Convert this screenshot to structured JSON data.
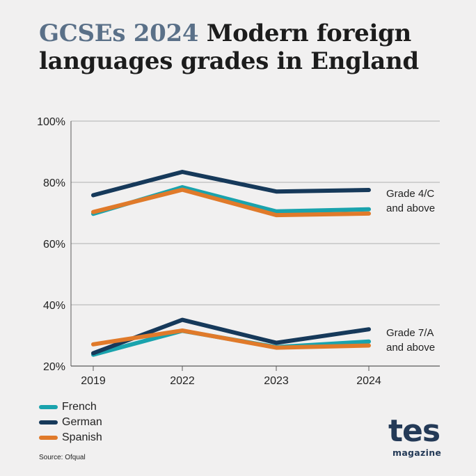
{
  "title": {
    "accent": "GCSEs 2024",
    "rest": "Modern foreign languages grades in England"
  },
  "colors": {
    "background": "#f1f0f0",
    "French": "#1aa3ad",
    "German": "#16395a",
    "Spanish": "#e07a2a",
    "grid": "#9a9a9a",
    "axis": "#5a5a5a"
  },
  "chart_data": {
    "type": "line",
    "categories": [
      "2019",
      "2022",
      "2023",
      "2024"
    ],
    "ylim": [
      20,
      100
    ],
    "yticks": [
      "20%",
      "40%",
      "60%",
      "80%",
      "100%"
    ],
    "ytick_values": [
      20,
      40,
      60,
      80,
      100
    ],
    "grid": true,
    "series": [
      {
        "name": "French",
        "group": "Grade 4/C and above",
        "values": [
          69.7,
          78.4,
          70.5,
          71.2
        ]
      },
      {
        "name": "German",
        "group": "Grade 4/C and above",
        "values": [
          75.8,
          83.4,
          77.0,
          77.5
        ]
      },
      {
        "name": "Spanish",
        "group": "Grade 4/C and above",
        "values": [
          70.3,
          77.6,
          69.3,
          69.8
        ]
      },
      {
        "name": "French",
        "group": "Grade 7/A and above",
        "values": [
          23.7,
          31.5,
          26.2,
          28.0
        ]
      },
      {
        "name": "German",
        "group": "Grade 7/A and above",
        "values": [
          24.2,
          35.1,
          27.6,
          32.0
        ]
      },
      {
        "name": "Spanish",
        "group": "Grade 7/A and above",
        "values": [
          27.1,
          31.6,
          26.0,
          26.7
        ]
      }
    ],
    "annotations": [
      {
        "line1": "Grade 4/C",
        "line2": "and above",
        "anchor_value": 77.5
      },
      {
        "line1": "Grade 7/A",
        "line2": "and above",
        "anchor_value": 32.0
      }
    ]
  },
  "legend": [
    {
      "name": "French"
    },
    {
      "name": "German"
    },
    {
      "name": "Spanish"
    }
  ],
  "source": "Source: Ofqual",
  "logo": {
    "word": "tes",
    "sub": "magazine"
  }
}
